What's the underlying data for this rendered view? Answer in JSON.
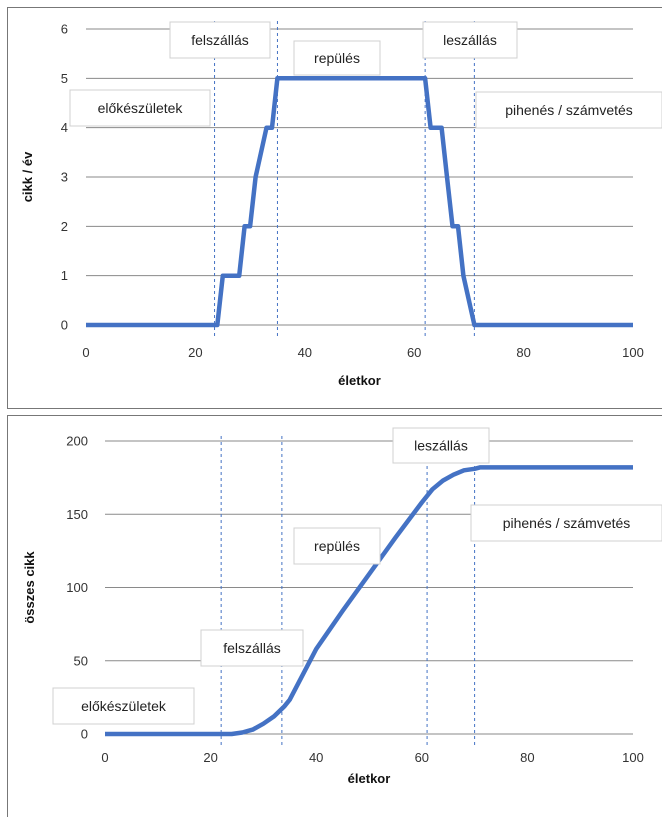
{
  "chart_data": [
    {
      "type": "line",
      "xlabel": "életkor",
      "ylabel": "cikk / év",
      "xlim": [
        0,
        100
      ],
      "ylim": [
        0,
        6
      ],
      "xticks": [
        "0",
        "20",
        "40",
        "60",
        "80",
        "100"
      ],
      "yticks": [
        "0",
        "1",
        "2",
        "3",
        "4",
        "5",
        "6"
      ],
      "grid": "horizontal",
      "series_color": "#4472c4",
      "x": [
        0,
        24,
        25,
        28,
        29,
        30,
        31,
        33,
        34,
        35,
        62,
        63,
        65,
        66,
        67,
        68,
        69,
        71,
        100
      ],
      "y": [
        0,
        0,
        1,
        1,
        2,
        2,
        3,
        4,
        4,
        5,
        5,
        4,
        4,
        3,
        2,
        2,
        1,
        0,
        0
      ],
      "vlines": [
        23.5,
        35,
        62,
        71
      ],
      "annotations": [
        "felszállás",
        "repülés",
        "leszállás",
        "előkészületek",
        "pihenés / számvetés"
      ]
    },
    {
      "type": "line",
      "xlabel": "életkor",
      "ylabel": "összes cikk",
      "xlim": [
        0,
        100
      ],
      "ylim": [
        0,
        200
      ],
      "xticks": [
        "0",
        "20",
        "40",
        "60",
        "80",
        "100"
      ],
      "yticks": [
        "0",
        "50",
        "100",
        "150",
        "200"
      ],
      "grid": "horizontal",
      "series_color": "#4472c4",
      "x": [
        0,
        24,
        26,
        28,
        30,
        32,
        34,
        35,
        40,
        45,
        50,
        55,
        60,
        62,
        64,
        66,
        68,
        70,
        71,
        100
      ],
      "y": [
        0,
        0,
        1,
        3,
        7,
        12,
        19,
        23.5,
        58,
        84,
        109,
        134,
        158,
        167,
        173,
        177,
        180,
        181,
        182,
        182
      ],
      "vlines": [
        22,
        33.5,
        61,
        70
      ],
      "annotations": [
        "leszállás",
        "pihenés / számvetés",
        "repülés",
        "felszállás",
        "előkészületek"
      ]
    }
  ]
}
